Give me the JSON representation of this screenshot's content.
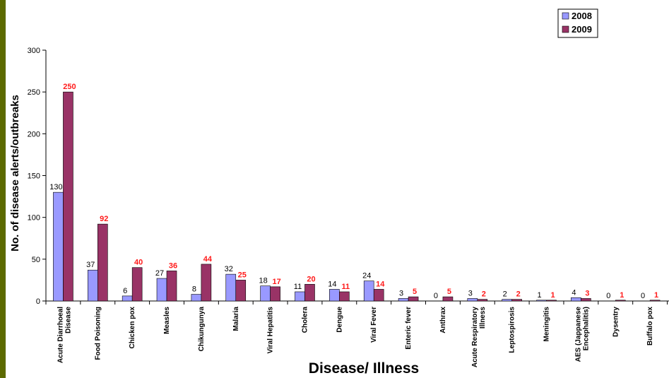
{
  "chart_data": {
    "type": "bar",
    "title": "",
    "xlabel": "Disease/ Illness",
    "ylabel": "No. of disease alerts/outbreaks",
    "ylim": [
      0,
      300
    ],
    "yticks": [
      0,
      50,
      100,
      150,
      200,
      250,
      300
    ],
    "grid": false,
    "legend_position": "top-right",
    "categories": [
      [
        "Acute Diarrhoeal",
        "Disease"
      ],
      [
        "Food Poisoning"
      ],
      [
        "Chicken pox"
      ],
      [
        "Measles"
      ],
      [
        "Chikungunya"
      ],
      [
        "Malaria"
      ],
      [
        "Viral Hepatitis"
      ],
      [
        "Cholera"
      ],
      [
        "Dengue"
      ],
      [
        "Viral Fever"
      ],
      [
        "Enteric fever"
      ],
      [
        "Anthrax"
      ],
      [
        "Acute Respiratory",
        "Illness"
      ],
      [
        "Leptospirosis"
      ],
      [
        "Meningitis"
      ],
      [
        "AES (Jappanese",
        "Encephalitis)"
      ],
      [
        "Dysentry"
      ],
      [
        "Buffalo pox"
      ]
    ],
    "series": [
      {
        "name": "2008",
        "color": "#9999ff",
        "values": [
          130,
          37,
          6,
          27,
          8,
          32,
          18,
          11,
          14,
          24,
          3,
          0,
          3,
          2,
          1,
          4,
          0,
          0
        ]
      },
      {
        "name": "2009",
        "color": "#993366",
        "values": [
          250,
          92,
          40,
          36,
          44,
          25,
          17,
          20,
          11,
          14,
          5,
          5,
          2,
          2,
          1,
          3,
          1,
          1
        ]
      }
    ]
  }
}
